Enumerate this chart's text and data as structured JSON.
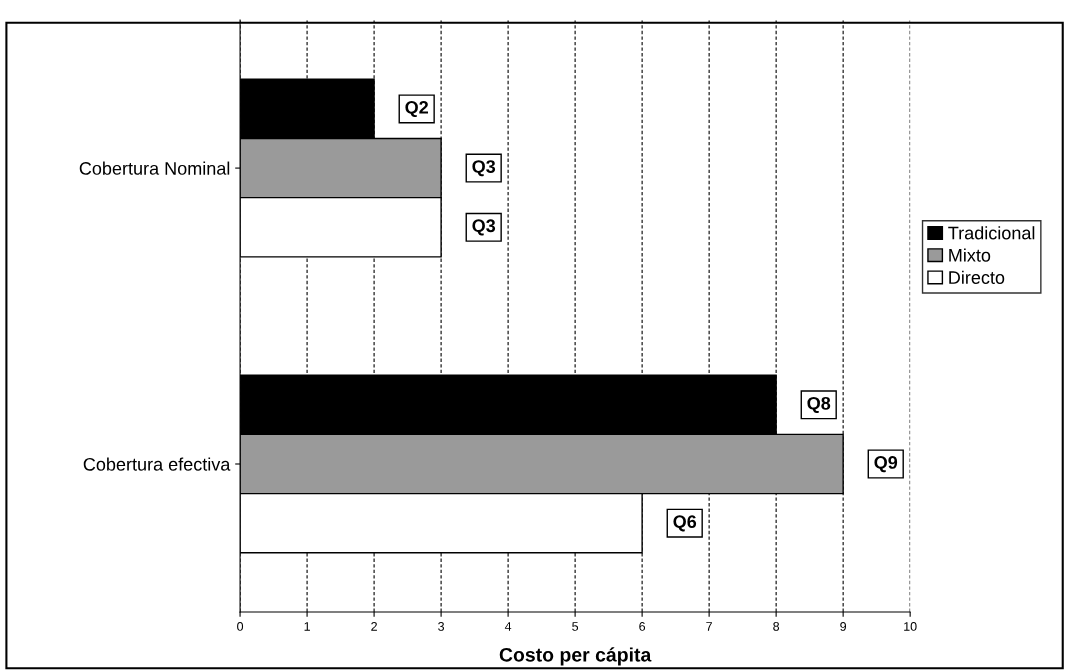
{
  "chart_data": {
    "type": "bar",
    "orientation": "horizontal",
    "xlabel": "Costo per cápita",
    "categories": [
      "Cobertura Nominal",
      "Cobertura efectiva"
    ],
    "series": [
      {
        "name": "Tradicional",
        "color": "#000000",
        "values": [
          2,
          8
        ],
        "value_labels": [
          "Q2",
          "Q8"
        ]
      },
      {
        "name": "Mixto",
        "color": "#9a9a9a",
        "values": [
          3,
          9
        ],
        "value_labels": [
          "Q3",
          "Q9"
        ]
      },
      {
        "name": "Directo",
        "color": "#ffffff",
        "values": [
          3,
          6
        ],
        "value_labels": [
          "Q3",
          "Q6"
        ]
      }
    ],
    "xlim": [
      0,
      10
    ],
    "xticks": [
      0,
      1,
      2,
      3,
      4,
      5,
      6,
      7,
      8,
      9,
      10
    ],
    "grid": "x",
    "legend": "right"
  }
}
